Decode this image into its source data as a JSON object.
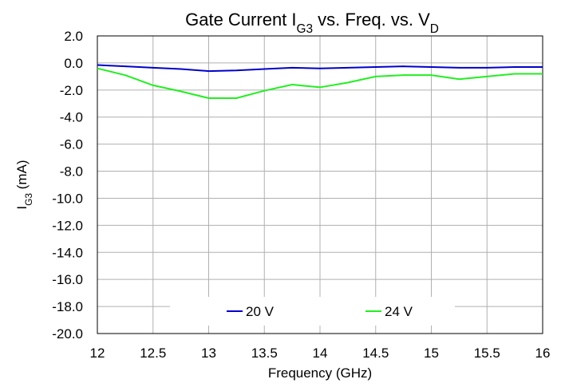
{
  "chart_data": {
    "type": "line",
    "title": [
      "Gate Current I",
      "G3",
      " vs. Freq. vs. V",
      "D"
    ],
    "xlabel": [
      "Frequency (GHz)"
    ],
    "ylabel": [
      "I",
      "G3",
      " (mA)"
    ],
    "x": [
      12,
      12.25,
      12.5,
      12.75,
      13,
      13.25,
      13.5,
      13.75,
      14,
      14.25,
      14.5,
      14.75,
      15,
      15.25,
      15.5,
      15.75,
      16
    ],
    "series": [
      {
        "name": "20 V",
        "color": "#0000cc",
        "values": [
          -0.15,
          -0.25,
          -0.35,
          -0.45,
          -0.6,
          -0.55,
          -0.45,
          -0.35,
          -0.4,
          -0.35,
          -0.3,
          -0.25,
          -0.3,
          -0.35,
          -0.35,
          -0.3,
          -0.3
        ]
      },
      {
        "name": "24 V",
        "color": "#22ee22",
        "values": [
          -0.4,
          -0.9,
          -1.65,
          -2.1,
          -2.6,
          -2.6,
          -2.05,
          -1.6,
          -1.8,
          -1.45,
          -1.0,
          -0.9,
          -0.9,
          -1.2,
          -1.0,
          -0.8,
          -0.8
        ]
      }
    ],
    "xlim": [
      12,
      16
    ],
    "xticks": [
      12,
      12.5,
      13,
      13.5,
      14,
      14.5,
      15,
      15.5,
      16
    ],
    "ylim": [
      -20,
      2
    ],
    "yticks": [
      {
        "value": 2,
        "label": "2.0"
      },
      {
        "value": 0,
        "label": "0.0"
      },
      {
        "value": -2,
        "label": "-2.0"
      },
      {
        "value": -4,
        "label": "-4.0"
      },
      {
        "value": -6,
        "label": "-6.0"
      },
      {
        "value": -8,
        "label": "-8.0"
      },
      {
        "value": -10,
        "label": "-10.0"
      },
      {
        "value": -12,
        "label": "-12.0"
      },
      {
        "value": -14,
        "label": "-14.0"
      },
      {
        "value": -16,
        "label": "-16.0"
      },
      {
        "value": -18,
        "label": "-18.0"
      },
      {
        "value": -20,
        "label": "-20.0"
      }
    ],
    "grid": true,
    "legend": "lower center"
  }
}
